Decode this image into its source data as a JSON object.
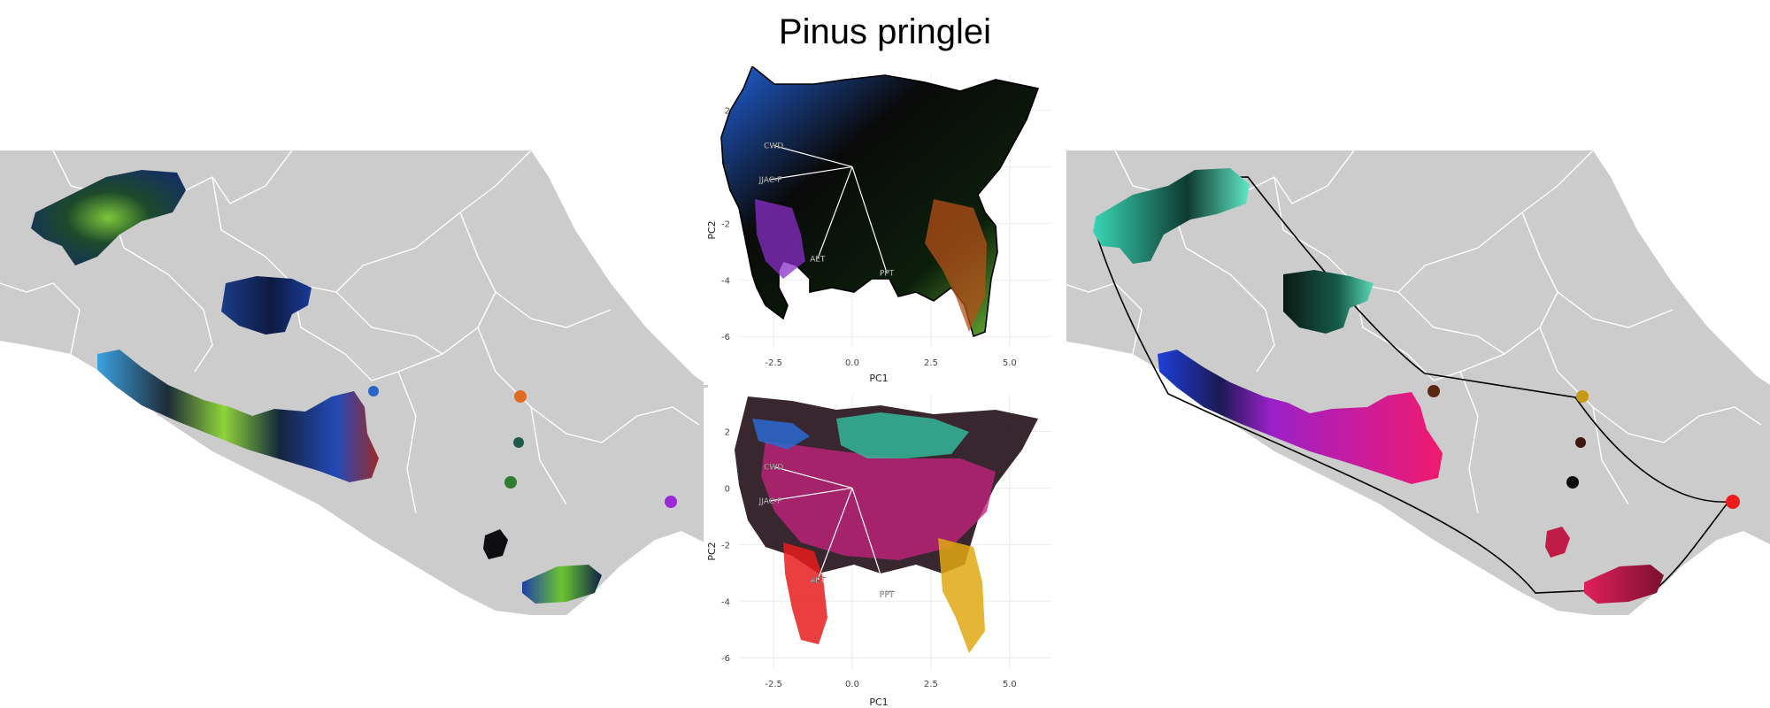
{
  "title": "Pinus pringlei",
  "chart_data": [
    {
      "type": "scatter",
      "panel": "pca-top",
      "xlabel": "PC1",
      "ylabel": "PC2",
      "xlim": [
        -3.6,
        6.3
      ],
      "ylim": [
        -6.4,
        3.3
      ],
      "xticks": [
        -2.5,
        0.0,
        2.5,
        5.0
      ],
      "xtick_labels": [
        "-2.5",
        "0.0",
        "2.5",
        "5.0"
      ],
      "yticks": [
        2,
        0,
        -2,
        -4,
        -6
      ],
      "ytick_labels": [
        "2",
        "0",
        "-2",
        "-4",
        "-6"
      ],
      "grid": true,
      "loadings": [
        {
          "label": "CWD",
          "x": -2.5,
          "y": 0.75
        },
        {
          "label": "JJAC-F",
          "x": -2.6,
          "y": -0.45
        },
        {
          "label": "AET",
          "x": -1.1,
          "y": -3.25
        },
        {
          "label": "PPT",
          "x": 1.1,
          "y": -3.75
        }
      ]
    },
    {
      "type": "scatter",
      "panel": "pca-bottom",
      "xlabel": "PC1",
      "ylabel": "PC2",
      "xlim": [
        -3.6,
        6.3
      ],
      "ylim": [
        -6.4,
        3.3
      ],
      "xticks": [
        -2.5,
        0.0,
        2.5,
        5.0
      ],
      "xtick_labels": [
        "-2.5",
        "0.0",
        "2.5",
        "5.0"
      ],
      "yticks": [
        2,
        0,
        -2,
        -4,
        -6
      ],
      "ytick_labels": [
        "2",
        "0",
        "-2",
        "-4",
        "-6"
      ],
      "grid": true,
      "loadings": [
        {
          "label": "CWD",
          "x": -2.5,
          "y": 0.75
        },
        {
          "label": "JJAC-F",
          "x": -2.6,
          "y": -0.45
        },
        {
          "label": "AET",
          "x": -1.1,
          "y": -3.25
        },
        {
          "label": "PPT",
          "x": 1.1,
          "y": -3.75
        }
      ]
    }
  ],
  "colors": {
    "land": "#cccccc",
    "borders": "#ffffff",
    "hull": "#000000"
  }
}
